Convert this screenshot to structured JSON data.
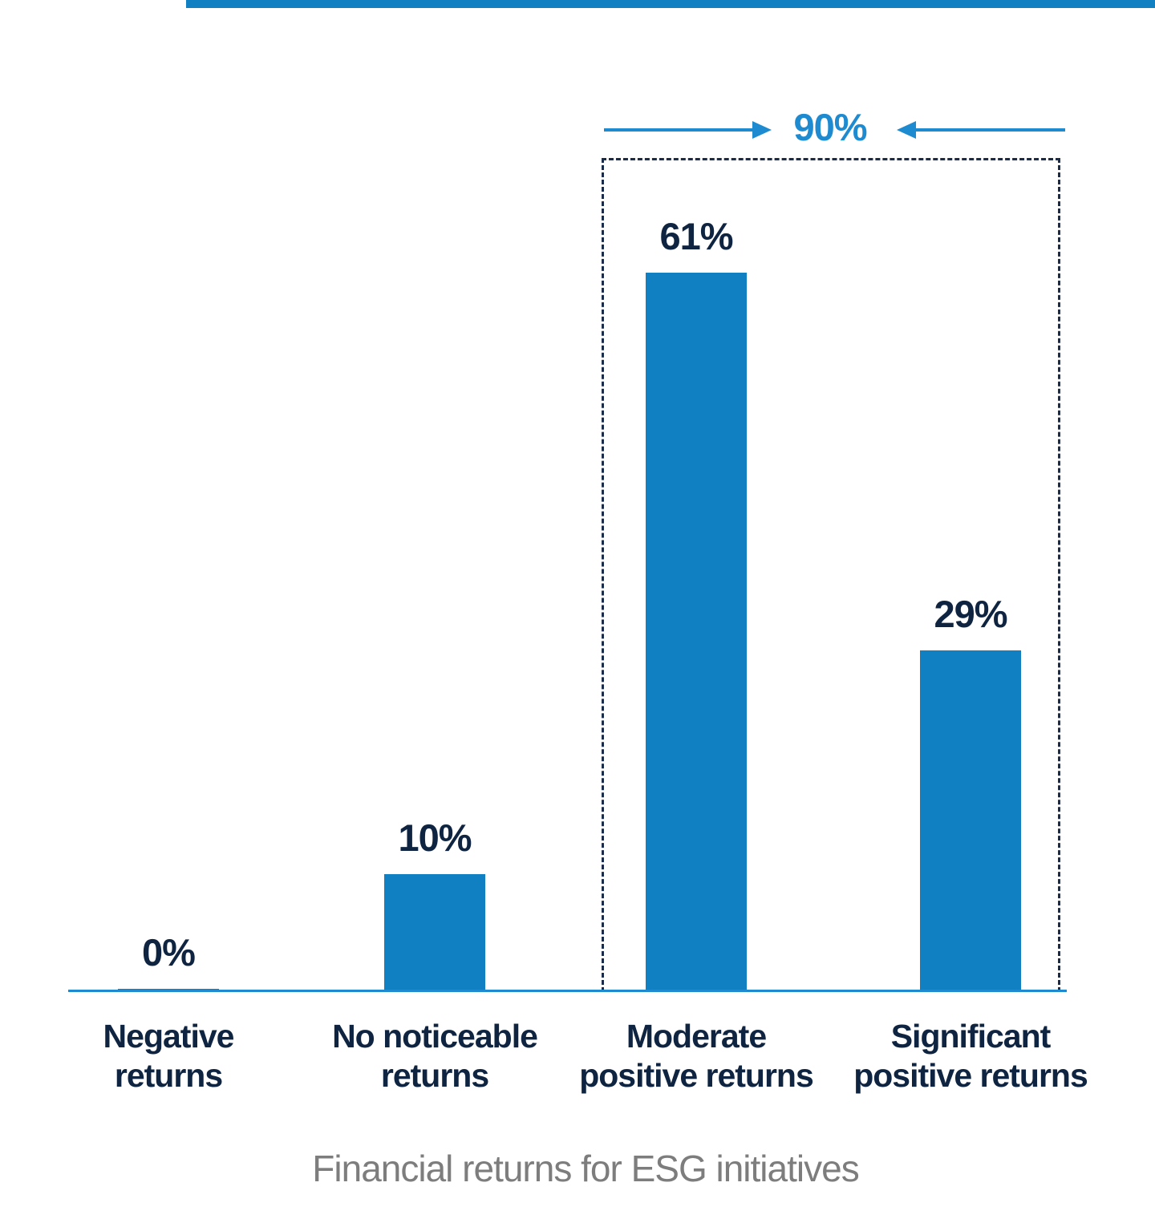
{
  "colors": {
    "bar": "#1180c2",
    "accent": "#1e8bd1",
    "navy": "#0e2440",
    "box": "#1b2b4a",
    "axis": "#1e8bd1",
    "topstrip": "#1180c2",
    "title": "#7d7d7d"
  },
  "chart_data": {
    "type": "bar",
    "categories": [
      "Negative returns",
      "No noticeable returns",
      "Moderate positive returns",
      "Significant positive returns"
    ],
    "category_lines": [
      "Negative\nreturns",
      "No noticeable\nreturns",
      "Moderate\npositive returns",
      "Significant\npositive returns"
    ],
    "values": [
      0,
      10,
      61,
      29
    ],
    "value_labels": [
      "0%",
      "10%",
      "61%",
      "29%"
    ],
    "title": "",
    "xlabel": "Financial returns for ESG initiatives",
    "ylabel": "",
    "ylim": [
      0,
      68
    ],
    "grid": false,
    "legend": "none",
    "annotation": {
      "text": "90%",
      "covers": [
        "Moderate positive returns",
        "Significant positive returns"
      ]
    }
  }
}
